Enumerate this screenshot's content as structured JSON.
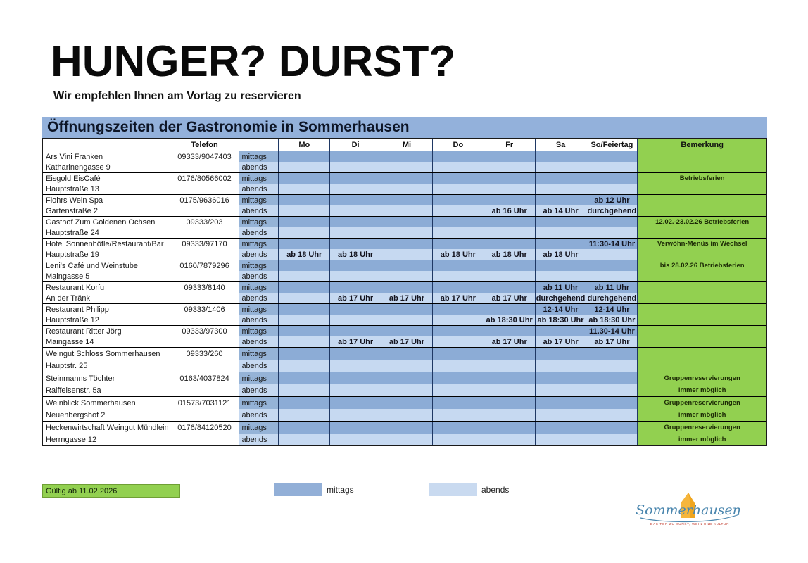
{
  "page": {
    "main_title": "HUNGER? DURST?",
    "subtitle": "Wir empfehlen Ihnen am Vortag zu reservieren",
    "banner_title": "Öffnungszeiten der Gastronomie in Sommerhausen"
  },
  "table": {
    "headers": {
      "telefon": "Telefon",
      "days": [
        "Mo",
        "Di",
        "Mi",
        "Do",
        "Fr",
        "Sa",
        "So/Feiertag"
      ],
      "bemerkung": "Bemerkung"
    },
    "row_labels": {
      "mittags": "mittags",
      "abends": "abends"
    },
    "rows": [
      {
        "name": "Ars Vini Franken",
        "address": "Katharinengasse 9",
        "phone": "09333/9047403",
        "mittags": [
          "",
          "",
          "",
          "",
          "",
          "",
          ""
        ],
        "abends": [
          "",
          "",
          "",
          "",
          "",
          "",
          ""
        ],
        "remark": [
          "",
          ""
        ]
      },
      {
        "name": "Eisgold EisCafé",
        "address": "Hauptstraße 13",
        "phone": "0176/80566002",
        "mittags": [
          "",
          "",
          "",
          "",
          "",
          "",
          ""
        ],
        "abends": [
          "",
          "",
          "",
          "",
          "",
          "",
          ""
        ],
        "remark": [
          "Betriebsferien",
          ""
        ]
      },
      {
        "name": "Flohrs Wein Spa",
        "address": "Gartenstraße 2",
        "phone": "0175/9636016",
        "mittags": [
          "",
          "",
          "",
          "",
          "",
          "",
          "ab 12 Uhr"
        ],
        "abends": [
          "",
          "",
          "",
          "",
          "ab 16 Uhr",
          "ab 14 Uhr",
          "durchgehend"
        ],
        "remark": [
          "",
          ""
        ]
      },
      {
        "name": "Gasthof Zum Goldenen Ochsen",
        "address": "Hauptstraße 24",
        "phone": "09333/203",
        "mittags": [
          "",
          "",
          "",
          "",
          "",
          "",
          ""
        ],
        "abends": [
          "",
          "",
          "",
          "",
          "",
          "",
          ""
        ],
        "remark": [
          "12.02.-23.02.26 Betriebsferien",
          ""
        ]
      },
      {
        "name": "Hotel Sonnenhöfle/Restaurant/Bar",
        "address": "Hauptstraße 19",
        "phone": "09333/97170",
        "mittags": [
          "",
          "",
          "",
          "",
          "",
          "",
          "11:30-14 Uhr"
        ],
        "abends": [
          "ab 18 Uhr",
          "ab 18 Uhr",
          "",
          "ab 18 Uhr",
          "ab 18 Uhr",
          "ab 18 Uhr",
          ""
        ],
        "remark": [
          "Verwöhn-Menüs im Wechsel",
          ""
        ]
      },
      {
        "name": "Leni's Café und Weinstube",
        "address": "Maingasse 5",
        "phone": "0160/7879296",
        "mittags": [
          "",
          "",
          "",
          "",
          "",
          "",
          ""
        ],
        "abends": [
          "",
          "",
          "",
          "",
          "",
          "",
          ""
        ],
        "remark": [
          "bis 28.02.26 Betriebsferien",
          ""
        ]
      },
      {
        "name": "Restaurant Korfu",
        "address": "An der Tränk",
        "phone": "09333/8140",
        "mittags": [
          "",
          "",
          "",
          "",
          "",
          "ab 11 Uhr",
          "ab 11 Uhr"
        ],
        "abends": [
          "",
          "ab 17 Uhr",
          "ab 17 Uhr",
          "ab 17 Uhr",
          "ab 17 Uhr",
          "durchgehend",
          "durchgehend"
        ],
        "remark": [
          "",
          ""
        ]
      },
      {
        "name": "Restaurant Philipp",
        "address": "Hauptstraße 12",
        "phone": "09333/1406",
        "mittags": [
          "",
          "",
          "",
          "",
          "",
          "12-14 Uhr",
          "12-14 Uhr"
        ],
        "abends": [
          "",
          "",
          "",
          "",
          "ab 18:30 Uhr",
          "ab 18:30 Uhr",
          "ab 18:30 Uhr"
        ],
        "remark": [
          "",
          ""
        ]
      },
      {
        "name": "Restaurant Ritter Jörg",
        "address": "Maingasse 14",
        "phone": "09333/97300",
        "mittags": [
          "",
          "",
          "",
          "",
          "",
          "",
          "11.30-14 Uhr"
        ],
        "abends": [
          "",
          "ab 17 Uhr",
          "ab 17 Uhr",
          "",
          "ab 17 Uhr",
          "ab 17 Uhr",
          "ab 17 Uhr"
        ],
        "remark": [
          "",
          ""
        ]
      },
      {
        "name": "Weingut Schloss Sommerhausen",
        "address": "Hauptstr. 25",
        "phone": "09333/260",
        "mittags": [
          "",
          "",
          "",
          "",
          "",
          "",
          ""
        ],
        "abends": [
          "",
          "",
          "",
          "",
          "",
          "",
          ""
        ],
        "remark": [
          "",
          ""
        ]
      },
      {
        "name": "Steinmanns Töchter",
        "address": "Raiffeisenstr. 5a",
        "phone": "0163/4037824",
        "mittags": [
          "",
          "",
          "",
          "",
          "",
          "",
          ""
        ],
        "abends": [
          "",
          "",
          "",
          "",
          "",
          "",
          ""
        ],
        "remark": [
          "Gruppenreservierungen",
          "immer möglich"
        ]
      },
      {
        "name": "Weinblick Sommerhausen",
        "address": "Neuenbergshof 2",
        "phone": "01573/7031121",
        "mittags": [
          "",
          "",
          "",
          "",
          "",
          "",
          ""
        ],
        "abends": [
          "",
          "",
          "",
          "",
          "",
          "",
          ""
        ],
        "remark": [
          "Gruppenreservierungen",
          "immer möglich"
        ]
      },
      {
        "name": "Heckenwirtschaft Weingut Mündlein",
        "address": "Herrngasse 12",
        "phone": "0176/84120520",
        "mittags": [
          "",
          "",
          "",
          "",
          "",
          "",
          ""
        ],
        "abends": [
          "",
          "",
          "",
          "",
          "",
          "",
          ""
        ],
        "remark": [
          "Gruppenreservierungen",
          "immer möglich"
        ]
      }
    ]
  },
  "footer": {
    "valid_label": "Gültig ab 11.02.2026",
    "legend": [
      {
        "label": "mittags",
        "color": "#92AFD7"
      },
      {
        "label": "abends",
        "color": "#C9DAF0"
      }
    ]
  },
  "logo": {
    "text": "Sommerhausen",
    "tagline": "DAS TOR ZU KUNST, WEIN UND KULTUR"
  },
  "colors": {
    "banner_blue": "#93B1DB",
    "mittags_cell": "#8CACD6",
    "mittags_label": "#95B3D7",
    "abends_cell": "#C6D9F1",
    "remark_green": "#92D050",
    "grid_line": "#1F3864"
  }
}
